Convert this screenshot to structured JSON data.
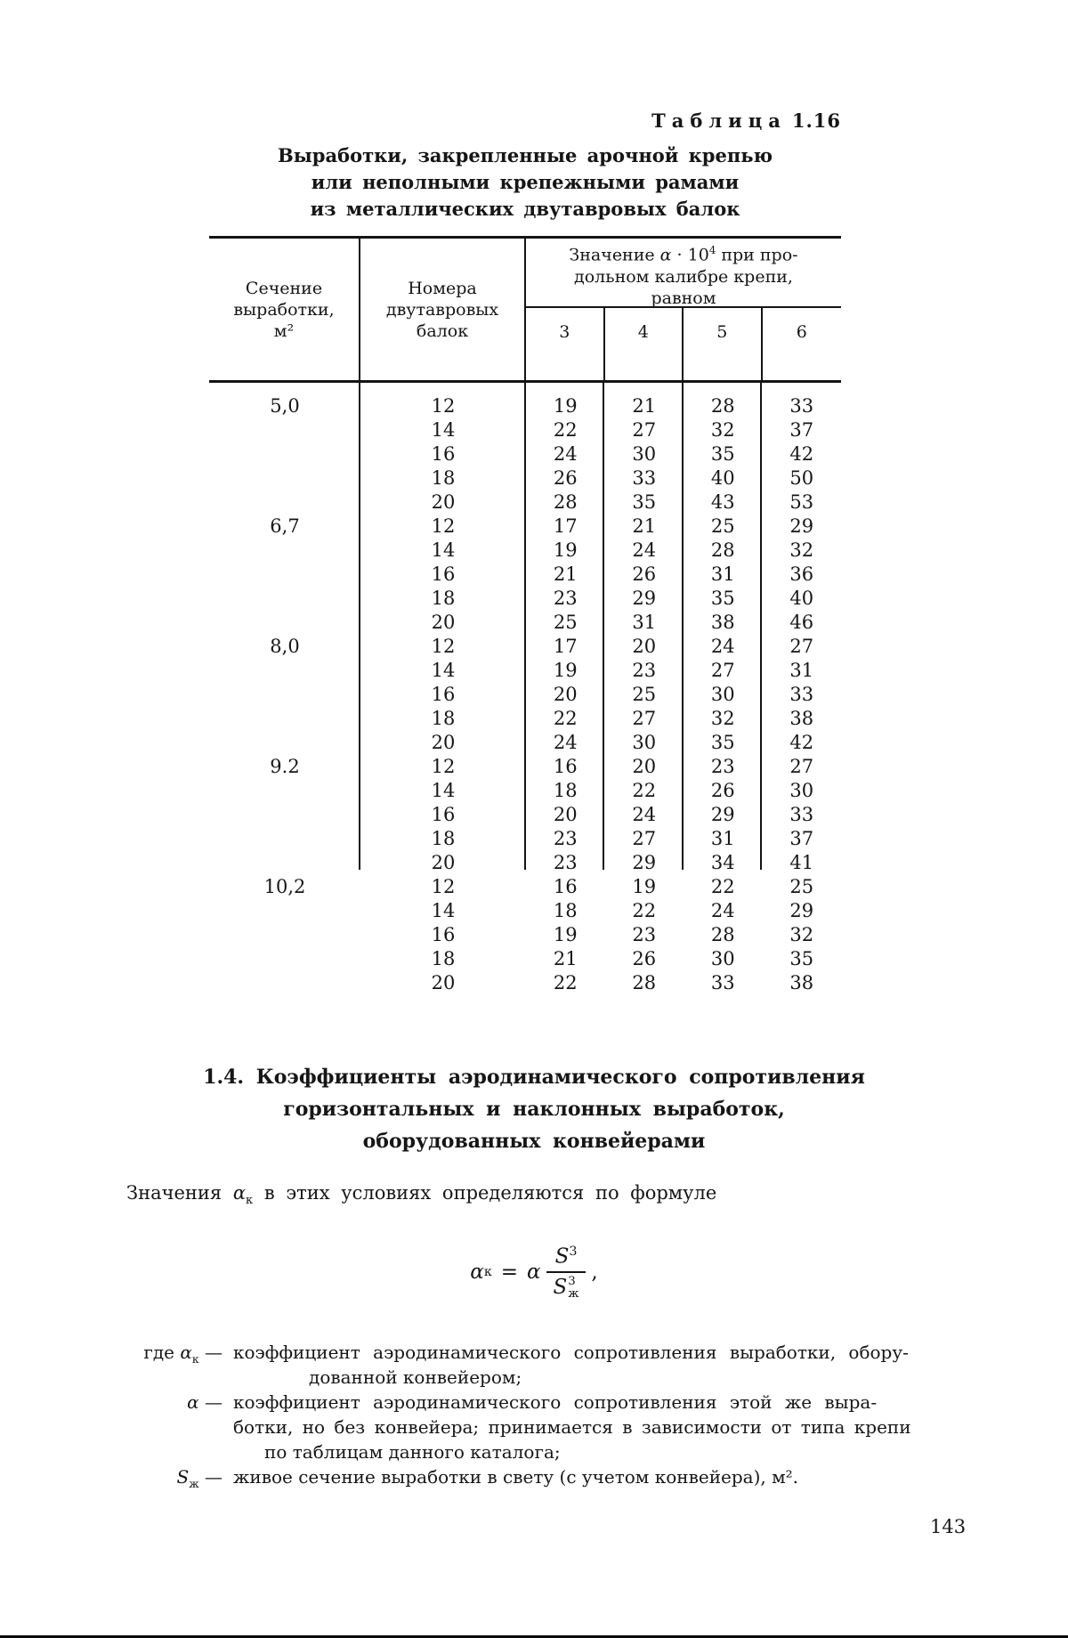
{
  "document": {
    "table_label_word": "Таблица",
    "table_label_number": "1.16",
    "page_number": "143"
  },
  "table": {
    "caption_lines": [
      "Выработки, закрепленные арочной крепью",
      "или неполными крепежными рамами",
      "из металлических двутавровых балок"
    ],
    "header": {
      "col1_lines": [
        "Сечение",
        "выработки,",
        "м²"
      ],
      "col2_lines": [
        "Номера",
        "двутавровых",
        "балок"
      ],
      "group_line1_pre": "Значение ",
      "group_alpha": "α",
      "group_mid": " · 10",
      "group_sup": "4",
      "group_line1_post": " при про-",
      "group_line2": "дольном калибре крепи,",
      "group_line3": "равном",
      "subcols": [
        "3",
        "4",
        "5",
        "6"
      ]
    },
    "groups": [
      {
        "section": "5,0",
        "rows": [
          [
            "12",
            "19",
            "21",
            "28",
            "33"
          ],
          [
            "14",
            "22",
            "27",
            "32",
            "37"
          ],
          [
            "16",
            "24",
            "30",
            "35",
            "42"
          ],
          [
            "18",
            "26",
            "33",
            "40",
            "50"
          ],
          [
            "20",
            "28",
            "35",
            "43",
            "53"
          ]
        ]
      },
      {
        "section": "6,7",
        "rows": [
          [
            "12",
            "17",
            "21",
            "25",
            "29"
          ],
          [
            "14",
            "19",
            "24",
            "28",
            "32"
          ],
          [
            "16",
            "21",
            "26",
            "31",
            "36"
          ],
          [
            "18",
            "23",
            "29",
            "35",
            "40"
          ],
          [
            "20",
            "25",
            "31",
            "38",
            "46"
          ]
        ]
      },
      {
        "section": "8,0",
        "rows": [
          [
            "12",
            "17",
            "20",
            "24",
            "27"
          ],
          [
            "14",
            "19",
            "23",
            "27",
            "31"
          ],
          [
            "16",
            "20",
            "25",
            "30",
            "33"
          ],
          [
            "18",
            "22",
            "27",
            "32",
            "38"
          ],
          [
            "20",
            "24",
            "30",
            "35",
            "42"
          ]
        ]
      },
      {
        "section": "9.2",
        "rows": [
          [
            "12",
            "16",
            "20",
            "23",
            "27"
          ],
          [
            "14",
            "18",
            "22",
            "26",
            "30"
          ],
          [
            "16",
            "20",
            "24",
            "29",
            "33"
          ],
          [
            "18",
            "23",
            "27",
            "31",
            "37"
          ],
          [
            "20",
            "23",
            "29",
            "34",
            "41"
          ]
        ]
      },
      {
        "section": "10,2",
        "rows": [
          [
            "12",
            "16",
            "19",
            "22",
            "25"
          ],
          [
            "14",
            "18",
            "22",
            "24",
            "29"
          ],
          [
            "16",
            "19",
            "23",
            "28",
            "32"
          ],
          [
            "18",
            "21",
            "26",
            "30",
            "35"
          ],
          [
            "20",
            "22",
            "28",
            "33",
            "38"
          ]
        ]
      }
    ]
  },
  "section": {
    "heading_lines": [
      "1.4. Коэффициенты аэродинамического сопротивления",
      "горизонтальных и наклонных выработок,",
      "оборудованных конвейерами"
    ],
    "intro": {
      "pre": "Значения ",
      "alpha": "α",
      "alpha_sub": "к",
      "post": " в этих условиях определяются по формуле"
    },
    "formula": {
      "lhs_base": "α",
      "lhs_sub": "к",
      "eq": "=",
      "coeff": "α",
      "num_base": "S",
      "num_sup": "3",
      "den_base": "S",
      "den_sup": "3",
      "den_sub": "ж",
      "trail": ","
    },
    "definitions": [
      {
        "prefix": "где ",
        "sym": "α",
        "sym_sub": "к",
        "dash": " — ",
        "lines": [
          "коэффициент аэродинамического сопротивления выработки, обору-",
          "дованной конвейером;"
        ]
      },
      {
        "prefix": "",
        "sym": "α",
        "sym_sub": "",
        "dash": " — ",
        "lines": [
          "коэффициент аэродинамического сопротивления этой же выра-",
          "ботки, но без конвейера; принимается в зависимости от типа крепи",
          "по таблицам данного каталога;"
        ]
      },
      {
        "prefix": "",
        "sym": "S",
        "sym_sub": "ж",
        "dash": " — ",
        "lines": [
          "живое сечение выработки в свету (с учетом конвейера), м²."
        ]
      }
    ]
  }
}
